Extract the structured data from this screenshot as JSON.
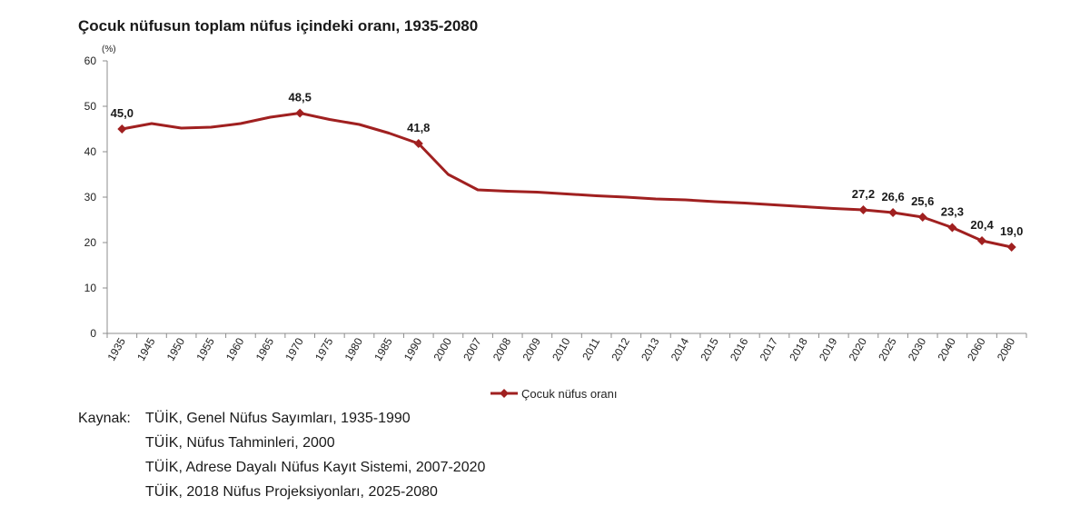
{
  "chart_data": {
    "type": "line",
    "title": "Çocuk nüfusun toplam nüfus içindeki oranı, 1935-2080",
    "y_unit": "(%)",
    "ylim": [
      0,
      60
    ],
    "y_ticks": [
      0,
      10,
      20,
      30,
      40,
      50,
      60
    ],
    "grid": false,
    "legend_position": "bottom-center",
    "color": "#a02020",
    "categories": [
      "1935",
      "1945",
      "1950",
      "1955",
      "1960",
      "1965",
      "1970",
      "1975",
      "1980",
      "1985",
      "1990",
      "2000",
      "2007",
      "2008",
      "2009",
      "2010",
      "2011",
      "2012",
      "2013",
      "2014",
      "2015",
      "2016",
      "2017",
      "2018",
      "2019",
      "2020",
      "2025",
      "2030",
      "2040",
      "2060",
      "2080"
    ],
    "series": [
      {
        "name": "Çocuk nüfus oranı",
        "values": [
          45.0,
          46.2,
          45.2,
          45.4,
          46.2,
          47.6,
          48.5,
          47.1,
          46.0,
          44.1,
          41.8,
          35.0,
          31.6,
          31.3,
          31.1,
          30.7,
          30.3,
          30.0,
          29.6,
          29.4,
          29.0,
          28.7,
          28.3,
          27.9,
          27.5,
          27.2,
          26.6,
          25.6,
          23.3,
          20.4,
          19.0
        ]
      }
    ],
    "data_labels": [
      {
        "category": "1935",
        "text": "45,0"
      },
      {
        "category": "1970",
        "text": "48,5"
      },
      {
        "category": "1990",
        "text": "41,8"
      },
      {
        "category": "2020",
        "text": "27,2"
      },
      {
        "category": "2025",
        "text": "26,6"
      },
      {
        "category": "2030",
        "text": "25,6"
      },
      {
        "category": "2040",
        "text": "23,3"
      },
      {
        "category": "2060",
        "text": "20,4"
      },
      {
        "category": "2080",
        "text": "19,0"
      }
    ]
  },
  "source": {
    "prefix": "Kaynak:",
    "lines": [
      "TÜİK, Genel Nüfus Sayımları, 1935-1990",
      "TÜİK, Nüfus Tahminleri, 2000",
      "TÜİK, Adrese Dayalı Nüfus Kayıt Sistemi, 2007-2020",
      "TÜİK, 2018 Nüfus Projeksiyonları, 2025-2080"
    ]
  }
}
